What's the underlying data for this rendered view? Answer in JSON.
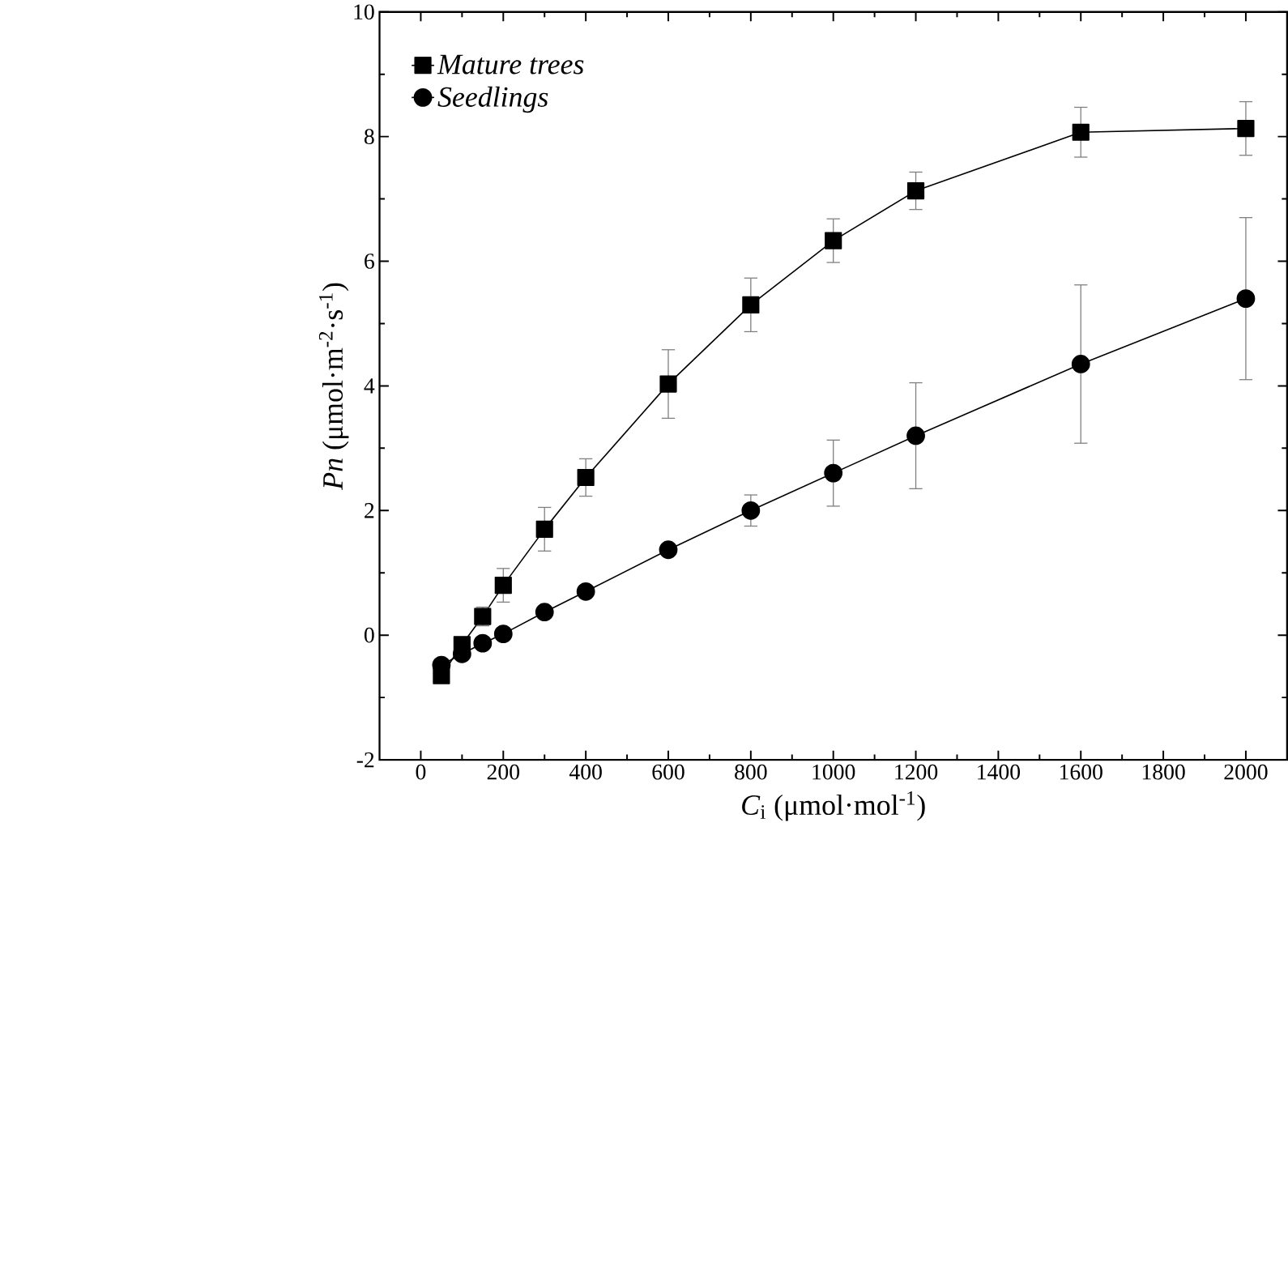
{
  "chart_data": {
    "type": "line",
    "xlabel": "*C*$_{i}$ (μmol·mol$^{-1}$)",
    "ylabel": "*Pn* (μmol·m$^{-2}$·s$^{-1}$)",
    "x": [
      50,
      100,
      150,
      200,
      300,
      400,
      600,
      800,
      1000,
      1200,
      1600,
      2000
    ],
    "series": [
      {
        "name": "Mature trees",
        "color": "#000000",
        "marker": "square",
        "values": [
          -0.65,
          -0.15,
          0.3,
          0.8,
          1.7,
          2.53,
          4.03,
          5.3,
          6.33,
          7.13,
          8.07,
          8.13
        ],
        "errors": [
          0.1,
          0.1,
          0.15,
          0.27,
          0.35,
          0.3,
          0.55,
          0.43,
          0.35,
          0.3,
          0.4,
          0.43
        ]
      },
      {
        "name": "Seedlings",
        "color": "#000000",
        "marker": "circle",
        "values": [
          -0.48,
          -0.3,
          -0.13,
          0.02,
          0.37,
          0.7,
          1.37,
          2.0,
          2.6,
          3.2,
          4.35,
          5.4
        ],
        "errors": [
          null,
          null,
          null,
          null,
          null,
          null,
          0.05,
          0.25,
          0.53,
          0.85,
          1.27,
          1.3
        ]
      }
    ],
    "xlim": [
      -100,
      2100
    ],
    "ylim": [
      -2,
      10
    ],
    "xticks": [
      0,
      200,
      400,
      600,
      800,
      1000,
      1200,
      1400,
      1600,
      1800,
      2000
    ],
    "yticks": [
      -2,
      0,
      2,
      4,
      6,
      8,
      10
    ],
    "legend": "top left",
    "grid": false,
    "line_style": "solid"
  }
}
